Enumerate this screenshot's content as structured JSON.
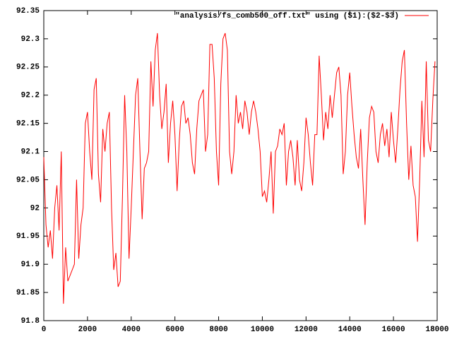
{
  "chart_data": {
    "type": "line",
    "x": [
      0,
      100,
      200,
      300,
      400,
      500,
      600,
      700,
      800,
      900,
      1000,
      1100,
      1200,
      1300,
      1400,
      1500,
      1600,
      1700,
      1800,
      1900,
      2000,
      2100,
      2200,
      2300,
      2400,
      2500,
      2600,
      2700,
      2800,
      2900,
      3000,
      3100,
      3200,
      3300,
      3400,
      3500,
      3600,
      3700,
      3800,
      3900,
      4000,
      4100,
      4200,
      4300,
      4400,
      4500,
      4600,
      4700,
      4800,
      4900,
      5000,
      5100,
      5200,
      5300,
      5400,
      5500,
      5600,
      5700,
      5800,
      5900,
      6000,
      6100,
      6200,
      6300,
      6400,
      6500,
      6600,
      6700,
      6800,
      6900,
      7000,
      7100,
      7200,
      7300,
      7400,
      7500,
      7600,
      7700,
      7800,
      7900,
      8000,
      8100,
      8200,
      8300,
      8400,
      8500,
      8600,
      8700,
      8800,
      8900,
      9000,
      9100,
      9200,
      9300,
      9400,
      9500,
      9600,
      9700,
      9800,
      9900,
      10000,
      10100,
      10200,
      10300,
      10400,
      10500,
      10600,
      10700,
      10800,
      10900,
      11000,
      11100,
      11200,
      11300,
      11400,
      11500,
      11600,
      11700,
      11800,
      11900,
      12000,
      12100,
      12200,
      12300,
      12400,
      12500,
      12600,
      12700,
      12800,
      12900,
      13000,
      13100,
      13200,
      13300,
      13400,
      13500,
      13600,
      13700,
      13800,
      13900,
      14000,
      14100,
      14200,
      14300,
      14400,
      14500,
      14600,
      14700,
      14800,
      14900,
      15000,
      15100,
      15200,
      15300,
      15400,
      15500,
      15600,
      15700,
      15800,
      15900,
      16000,
      16100,
      16200,
      16300,
      16400,
      16500,
      16600,
      16700,
      16800,
      16900,
      17000,
      17100,
      17200,
      17300,
      17400,
      17500,
      17600,
      17700,
      17800,
      17900
    ],
    "series": [
      {
        "name": "\"analysis/fs_comb500_off.txt\" using ($1):($2-$3)",
        "color": "#ff0000",
        "values": [
          92.09,
          91.97,
          91.93,
          91.96,
          91.91,
          92.0,
          92.04,
          91.96,
          92.1,
          91.83,
          91.93,
          91.87,
          91.88,
          91.89,
          91.9,
          92.05,
          91.91,
          91.97,
          92.0,
          92.15,
          92.17,
          92.1,
          92.05,
          92.21,
          92.23,
          92.06,
          92.01,
          92.14,
          92.1,
          92.15,
          92.17,
          92.0,
          91.89,
          91.92,
          91.86,
          91.87,
          92.02,
          92.2,
          92.1,
          91.91,
          92.0,
          92.1,
          92.2,
          92.23,
          92.1,
          91.98,
          92.07,
          92.08,
          92.1,
          92.26,
          92.18,
          92.28,
          92.31,
          92.2,
          92.14,
          92.17,
          92.22,
          92.08,
          92.15,
          92.19,
          92.13,
          92.03,
          92.12,
          92.18,
          92.19,
          92.15,
          92.16,
          92.13,
          92.08,
          92.06,
          92.14,
          92.19,
          92.2,
          92.21,
          92.1,
          92.13,
          92.29,
          92.29,
          92.23,
          92.1,
          92.04,
          92.22,
          92.3,
          92.31,
          92.28,
          92.1,
          92.06,
          92.1,
          92.2,
          92.15,
          92.17,
          92.14,
          92.19,
          92.17,
          92.13,
          92.17,
          92.19,
          92.17,
          92.14,
          92.1,
          92.02,
          92.03,
          92.01,
          92.05,
          92.1,
          91.99,
          92.1,
          92.11,
          92.14,
          92.13,
          92.15,
          92.04,
          92.1,
          92.12,
          92.09,
          92.04,
          92.12,
          92.05,
          92.03,
          92.08,
          92.16,
          92.13,
          92.08,
          92.04,
          92.13,
          92.13,
          92.27,
          92.2,
          92.12,
          92.17,
          92.14,
          92.2,
          92.16,
          92.2,
          92.24,
          92.25,
          92.2,
          92.06,
          92.1,
          92.2,
          92.24,
          92.18,
          92.13,
          92.09,
          92.07,
          92.14,
          92.05,
          91.97,
          92.08,
          92.16,
          92.18,
          92.17,
          92.1,
          92.08,
          92.13,
          92.15,
          92.11,
          92.14,
          92.09,
          92.17,
          92.12,
          92.08,
          92.14,
          92.21,
          92.26,
          92.28,
          92.15,
          92.05,
          92.11,
          92.04,
          92.02,
          91.94,
          92.05,
          92.19,
          92.09,
          92.26,
          92.12,
          92.1,
          92.19,
          92.26
        ]
      }
    ],
    "xlim": [
      0,
      18000
    ],
    "ylim": [
      91.8,
      92.35
    ],
    "xticks": [
      0,
      2000,
      4000,
      6000,
      8000,
      10000,
      12000,
      14000,
      16000,
      18000
    ],
    "yticks": [
      91.8,
      91.85,
      91.9,
      91.95,
      92,
      92.05,
      92.1,
      92.15,
      92.2,
      92.25,
      92.3,
      92.35
    ],
    "legend": "top-right"
  }
}
